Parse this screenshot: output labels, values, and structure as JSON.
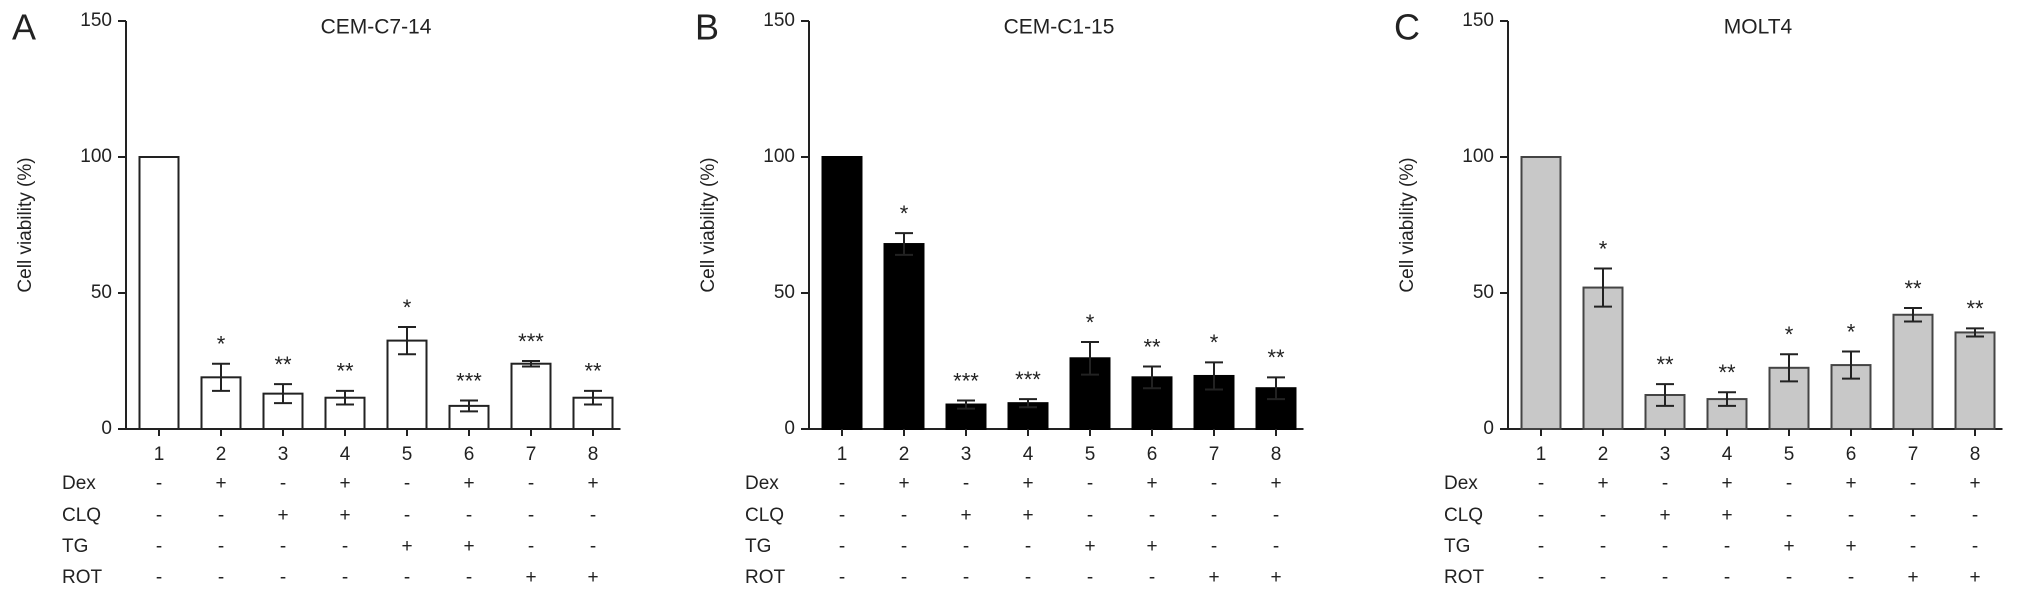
{
  "chart_data": [
    {
      "type": "bar",
      "panel": "A",
      "title": "CEM-C7-14",
      "ylabel": "Cell viability (%)",
      "color": "#ffffff",
      "edge_color": "#222222",
      "categories": [
        "1",
        "2",
        "3",
        "4",
        "5",
        "6",
        "7",
        "8"
      ],
      "values": [
        100,
        19,
        13,
        11.5,
        32.5,
        8.5,
        24,
        11.5
      ],
      "errors": [
        null,
        5,
        3.5,
        2.5,
        5,
        2,
        1,
        2.5
      ],
      "annotations": [
        null,
        "*",
        "**",
        "**",
        "*",
        "***",
        "***",
        "**"
      ],
      "ylim": [
        0,
        150
      ],
      "yticks": [
        0,
        50,
        100,
        150
      ],
      "treatments": [
        {
          "name": "Dex",
          "signs": [
            "-",
            "+",
            "-",
            "+",
            "-",
            "+",
            "-",
            "+"
          ]
        },
        {
          "name": "CLQ",
          "signs": [
            "-",
            "-",
            "+",
            "+",
            "-",
            "-",
            "-",
            "-"
          ]
        },
        {
          "name": "TG",
          "signs": [
            "-",
            "-",
            "-",
            "-",
            "+",
            "+",
            "-",
            "-"
          ]
        },
        {
          "name": "ROT",
          "signs": [
            "-",
            "-",
            "-",
            "-",
            "-",
            "-",
            "+",
            "+"
          ]
        }
      ]
    },
    {
      "type": "bar",
      "panel": "B",
      "title": "CEM-C1-15",
      "ylabel": "Cell viability (%)",
      "color": "#000000",
      "edge_color": "#000000",
      "categories": [
        "1",
        "2",
        "3",
        "4",
        "5",
        "6",
        "7",
        "8"
      ],
      "values": [
        100,
        68,
        9,
        9.5,
        26,
        19,
        19.5,
        15
      ],
      "errors": [
        null,
        4,
        1.5,
        1.5,
        6,
        4,
        5,
        4
      ],
      "annotations": [
        null,
        "*",
        "***",
        "***",
        "*",
        "**",
        "*",
        "**"
      ],
      "ylim": [
        0,
        150
      ],
      "yticks": [
        0,
        50,
        100,
        150
      ],
      "treatments": [
        {
          "name": "Dex",
          "signs": [
            "-",
            "+",
            "-",
            "+",
            "-",
            "+",
            "-",
            "+"
          ]
        },
        {
          "name": "CLQ",
          "signs": [
            "-",
            "-",
            "+",
            "+",
            "-",
            "-",
            "-",
            "-"
          ]
        },
        {
          "name": "TG",
          "signs": [
            "-",
            "-",
            "-",
            "-",
            "+",
            "+",
            "-",
            "-"
          ]
        },
        {
          "name": "ROT",
          "signs": [
            "-",
            "-",
            "-",
            "-",
            "-",
            "-",
            "+",
            "+"
          ]
        }
      ]
    },
    {
      "type": "bar",
      "panel": "C",
      "title": "MOLT4",
      "ylabel": "Cell viability (%)",
      "color": "#c8c8c8",
      "edge_color": "#444444",
      "categories": [
        "1",
        "2",
        "3",
        "4",
        "5",
        "6",
        "7",
        "8"
      ],
      "values": [
        100,
        52,
        12.5,
        11,
        22.5,
        23.5,
        42,
        35.5
      ],
      "errors": [
        null,
        7,
        4,
        2.5,
        5,
        5,
        2.5,
        1.5
      ],
      "annotations": [
        null,
        "*",
        "**",
        "**",
        "*",
        "*",
        "**",
        "**"
      ],
      "ylim": [
        0,
        150
      ],
      "yticks": [
        0,
        50,
        100,
        150
      ],
      "treatments": [
        {
          "name": "Dex",
          "signs": [
            "-",
            "+",
            "-",
            "+",
            "-",
            "+",
            "-",
            "+"
          ]
        },
        {
          "name": "CLQ",
          "signs": [
            "-",
            "-",
            "+",
            "+",
            "-",
            "-",
            "-",
            "-"
          ]
        },
        {
          "name": "TG",
          "signs": [
            "-",
            "-",
            "-",
            "-",
            "+",
            "+",
            "-",
            "-"
          ]
        },
        {
          "name": "ROT",
          "signs": [
            "-",
            "-",
            "-",
            "-",
            "-",
            "-",
            "+",
            "+"
          ]
        }
      ]
    }
  ]
}
